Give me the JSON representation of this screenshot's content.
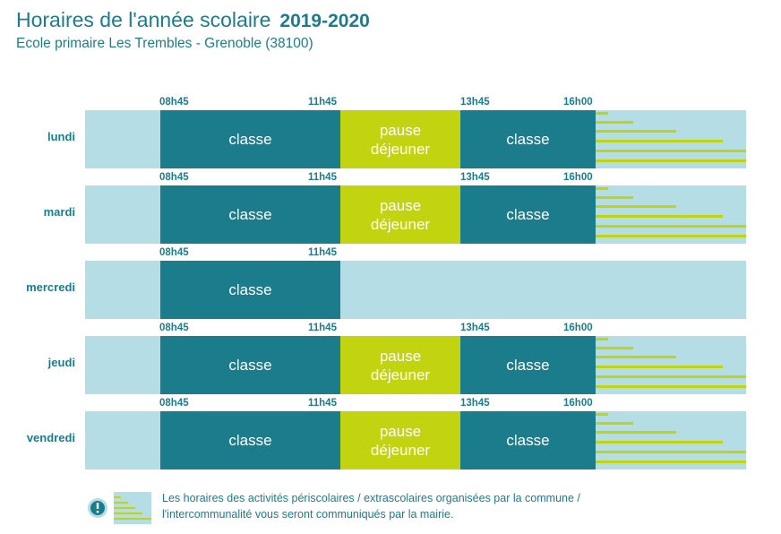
{
  "header": {
    "title": "Horaires de l'année scolaire",
    "year": "2019-2020",
    "subtitle": "Ecole primaire Les Trembles - Grenoble (38100)"
  },
  "days": [
    {
      "label": "lundi",
      "times": [
        "08h45",
        "11h45",
        "13h45",
        "16h00"
      ],
      "morning": "classe",
      "lunch": "pause\ndéjeuner",
      "afternoon": "classe"
    },
    {
      "label": "mardi",
      "times": [
        "08h45",
        "11h45",
        "13h45",
        "16h00"
      ],
      "morning": "classe",
      "lunch": "pause\ndéjeuner",
      "afternoon": "classe"
    },
    {
      "label": "mercredi",
      "times": [
        "08h45",
        "11h45"
      ],
      "morning": "classe"
    },
    {
      "label": "jeudi",
      "times": [
        "08h45",
        "11h45",
        "13h45",
        "16h00"
      ],
      "morning": "classe",
      "lunch": "pause\ndéjeuner",
      "afternoon": "classe"
    },
    {
      "label": "vendredi",
      "times": [
        "08h45",
        "11h45",
        "13h45",
        "16h00"
      ],
      "morning": "classe",
      "lunch": "pause\ndéjeuner",
      "afternoon": "classe"
    }
  ],
  "legend": {
    "line1": "Les horaires des activités périscolaires / extrascolaires organisées par la commune /",
    "line2": "l'intercommunalité vous seront communiqués par la mairie."
  },
  "colors": {
    "teal": "#1b7d8b",
    "light_blue": "#b5dde6",
    "lime": "#c2d30f"
  }
}
